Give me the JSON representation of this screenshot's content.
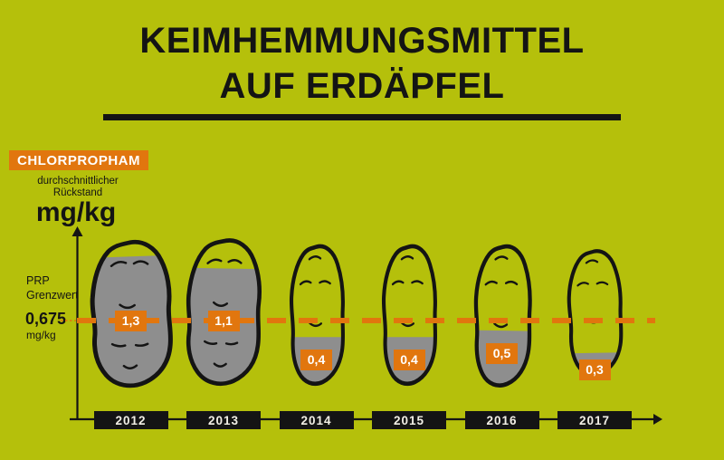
{
  "title": {
    "line1": "KEIMHEMMUNGSMITTEL",
    "line2": "AUF ERDÄPFEL"
  },
  "legend": {
    "substance": "CHLORPROPHAM",
    "subtitle_line1": "durchschnittlicher",
    "subtitle_line2": "Rückstand",
    "unit_label": "mg/kg"
  },
  "threshold": {
    "label_line1": "PRP",
    "label_line2": "Grenzwert",
    "value": "0,675",
    "unit": "mg/kg"
  },
  "chart_data": {
    "type": "bar",
    "title": "Keimhemmungsmittel auf Erdäpfel",
    "subtitle": "Chlorpropham — durchschnittlicher Rückstand in mg/kg",
    "categories": [
      "2012",
      "2013",
      "2014",
      "2015",
      "2016",
      "2017"
    ],
    "values": [
      1.3,
      1.1,
      0.4,
      0.4,
      0.5,
      0.3
    ],
    "value_labels": [
      "1,3",
      "1,1",
      "0,4",
      "0,4",
      "0,5",
      "0,3"
    ],
    "unit": "mg/kg",
    "threshold_value": 0.675,
    "threshold_label": "PRP Grenzwert 0,675 mg/kg",
    "marker_style": "potato",
    "fill_percents": [
      88,
      79,
      36,
      36,
      41,
      21
    ],
    "legend_position": "top-left",
    "grid": false
  },
  "colors": {
    "background": "#b5c00b",
    "orange": "#e1760e",
    "potato_fill": "#8e8e8e",
    "ink": "#141414",
    "year_label_text": "#f2efe6"
  }
}
